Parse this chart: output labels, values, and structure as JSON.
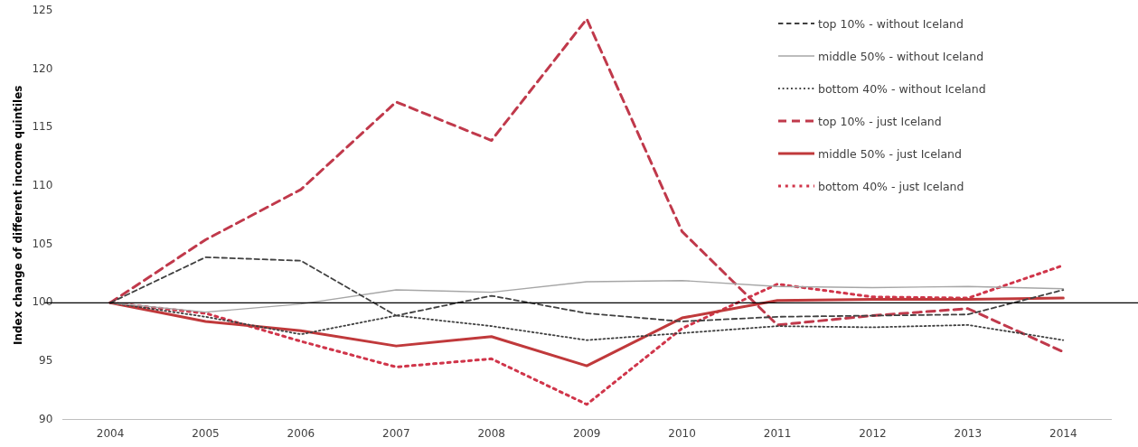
{
  "chart_data": {
    "type": "line",
    "ylabel": "Index change of different income quintiles",
    "categories": [
      "2004",
      "2005",
      "2006",
      "2007",
      "2008",
      "2009",
      "2010",
      "2011",
      "2012",
      "2013",
      "2014"
    ],
    "ylim": [
      90,
      125
    ],
    "yticks": [
      90,
      95,
      100,
      105,
      110,
      115,
      120,
      125
    ],
    "grid": false,
    "legend": "top right",
    "marker": "none",
    "ref_lines": [
      {
        "axis": "y",
        "value": 100,
        "color": "#000000"
      }
    ],
    "series": [
      {
        "name": "top 10% - without Iceland",
        "color": "#404040",
        "line_style": "dashed",
        "values": [
          100,
          103.9,
          103.6,
          98.9,
          100.6,
          99.1,
          98.4,
          98.8,
          98.9,
          99.0,
          101.1
        ]
      },
      {
        "name": "middle 50% - without Iceland",
        "color": "#a6a6a6",
        "line_style": "solid",
        "values": [
          100,
          99.2,
          99.9,
          101.1,
          100.9,
          101.8,
          101.9,
          101.4,
          101.3,
          101.4,
          101.2
        ]
      },
      {
        "name": "bottom 40% - without Iceland",
        "color": "#404040",
        "line_style": "dotted",
        "values": [
          100,
          98.8,
          97.3,
          98.9,
          98.0,
          96.8,
          97.4,
          98.0,
          97.9,
          98.1,
          96.8
        ]
      },
      {
        "name": "top 10% - just Iceland",
        "color": "#c0394b",
        "line_style": "dashed",
        "values": [
          100,
          105.4,
          109.7,
          117.2,
          113.9,
          124.3,
          106.1,
          98.1,
          98.9,
          99.5,
          95.8
        ]
      },
      {
        "name": "middle 50% - just Iceland",
        "color": "#c0393b",
        "line_style": "solid",
        "values": [
          100,
          98.4,
          97.6,
          96.3,
          97.1,
          94.6,
          98.7,
          100.2,
          100.3,
          100.3,
          100.4
        ]
      },
      {
        "name": "bottom 40% - just Iceland",
        "color": "#d0354a",
        "line_style": "dotted",
        "values": [
          100,
          99.1,
          96.7,
          94.5,
          95.2,
          91.3,
          97.8,
          101.6,
          100.5,
          100.4,
          103.2
        ]
      }
    ]
  }
}
